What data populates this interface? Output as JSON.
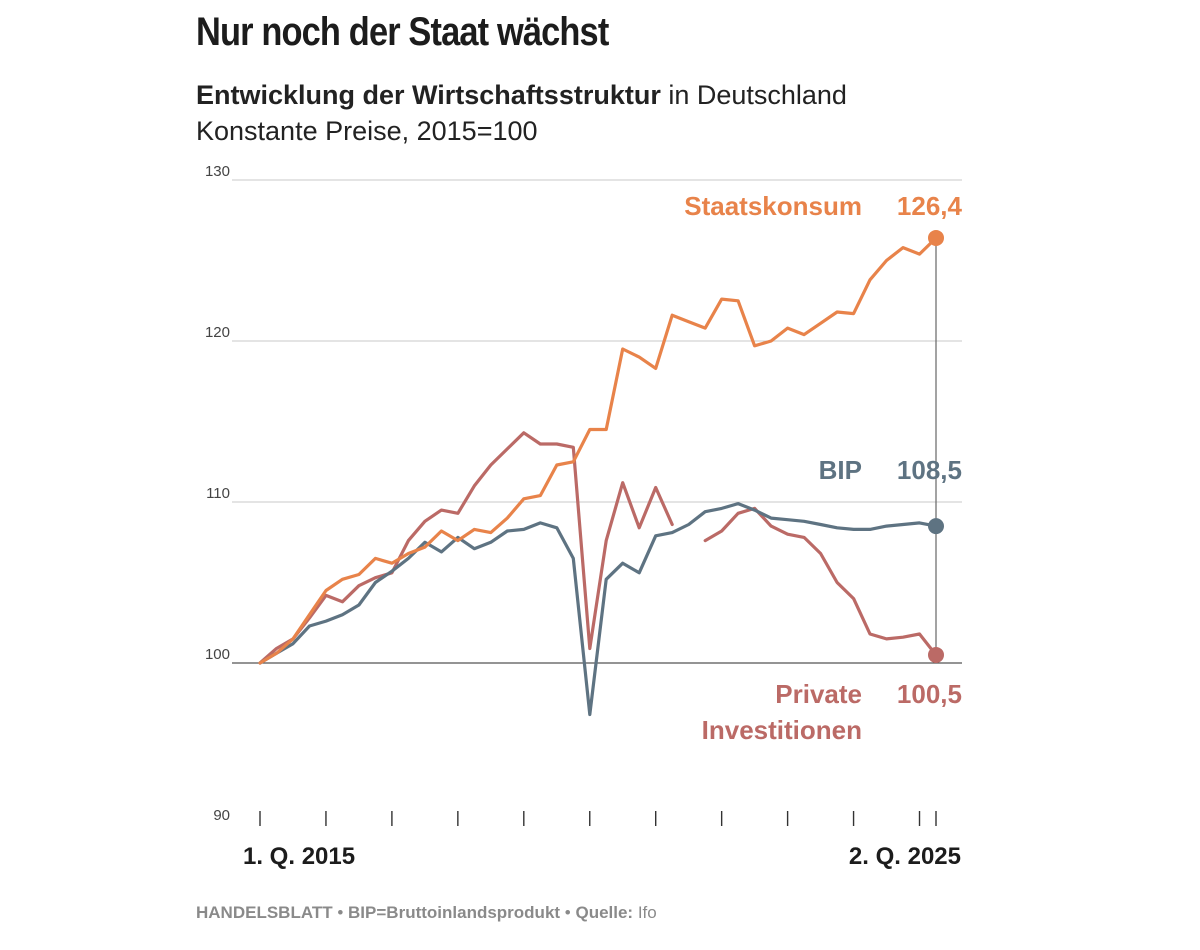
{
  "title": "Nur noch der Staat wächst",
  "subtitle_bold": "Entwicklung der Wirtschaftsstruktur",
  "subtitle_rest": " in Deutschland",
  "subtitle2": "Konstante Preise, 2015=100",
  "footer": {
    "publisher": "HANDELSBLATT",
    "sep1": " • ",
    "abbr": "BIP=Bruttoinlandsprodukt",
    "sep2": " • ",
    "source_label": "Quelle:",
    "source": " Ifo"
  },
  "colors": {
    "staatskonsum": "#e8834a",
    "bip": "#5e7382",
    "private": "#bb6a66",
    "grid": "#c8c8c8",
    "axis": "#333333"
  },
  "chart_data": {
    "type": "line",
    "x_start_label": "1. Q. 2015",
    "x_end_label": "2. Q. 2025",
    "x": [
      "2015Q1",
      "2015Q2",
      "2015Q3",
      "2015Q4",
      "2016Q1",
      "2016Q2",
      "2016Q3",
      "2016Q4",
      "2017Q1",
      "2017Q2",
      "2017Q3",
      "2017Q4",
      "2018Q1",
      "2018Q2",
      "2018Q3",
      "2018Q4",
      "2019Q1",
      "2019Q2",
      "2019Q3",
      "2019Q4",
      "2020Q1",
      "2020Q2",
      "2020Q3",
      "2020Q4",
      "2021Q1",
      "2021Q2",
      "2021Q3",
      "2021Q4",
      "2022Q1",
      "2022Q2",
      "2022Q3",
      "2022Q4",
      "2023Q1",
      "2023Q2",
      "2023Q3",
      "2023Q4",
      "2024Q1",
      "2024Q2",
      "2024Q3",
      "2024Q4",
      "2025Q1",
      "2025Q2"
    ],
    "yticks": [
      90,
      100,
      110,
      120,
      130
    ],
    "ylim": [
      90,
      130
    ],
    "series": [
      {
        "name": "Staatskonsum",
        "end_value_label": "126,4",
        "values": [
          100.0,
          100.6,
          101.5,
          103.0,
          104.5,
          105.2,
          105.5,
          106.5,
          106.2,
          106.8,
          107.2,
          108.2,
          107.6,
          108.3,
          108.1,
          109.0,
          110.2,
          110.4,
          112.3,
          112.5,
          114.5,
          114.5,
          119.5,
          119.0,
          118.3,
          121.6,
          121.2,
          120.8,
          122.6,
          122.5,
          119.7,
          120.0,
          120.8,
          120.4,
          121.1,
          121.8,
          121.7,
          123.8,
          125.0,
          125.8,
          125.4,
          126.4
        ]
      },
      {
        "name": "BIP",
        "end_value_label": "108,5",
        "values": [
          100.0,
          100.6,
          101.2,
          102.3,
          102.6,
          103.0,
          103.6,
          105.0,
          105.7,
          106.5,
          107.5,
          106.9,
          107.8,
          107.1,
          107.5,
          108.2,
          108.3,
          108.7,
          108.4,
          106.5,
          96.8,
          105.2,
          106.2,
          105.6,
          107.9,
          108.1,
          108.6,
          109.4,
          109.6,
          109.9,
          109.5,
          109.0,
          108.9,
          108.8,
          108.6,
          108.4,
          108.3,
          108.3,
          108.5,
          108.6,
          108.7,
          108.5
        ]
      },
      {
        "name": "Private Investitionen",
        "name_lines": [
          "Private",
          "Investitionen"
        ],
        "end_value_label": "100,5",
        "values": [
          100.0,
          100.9,
          101.5,
          102.8,
          104.2,
          103.8,
          104.8,
          105.3,
          105.6,
          107.6,
          108.8,
          109.5,
          109.3,
          111.0,
          112.3,
          113.3,
          114.3,
          113.6,
          113.6,
          113.4,
          100.9,
          107.6,
          111.2,
          108.4,
          110.9,
          108.6,
          null,
          107.6,
          108.2,
          109.3,
          109.6,
          108.5,
          108.0,
          107.8,
          106.8,
          105.0,
          104.0,
          101.8,
          101.5,
          101.6,
          101.8,
          100.5
        ]
      }
    ]
  }
}
